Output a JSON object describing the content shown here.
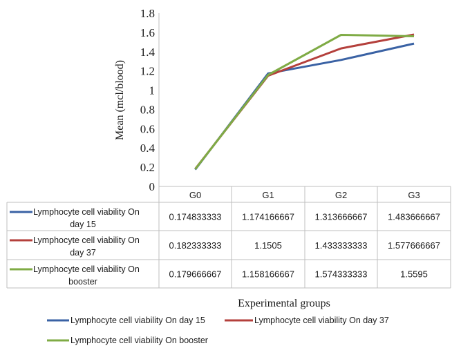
{
  "chart_data": {
    "type": "line",
    "ylabel": "Mean (mcl/blood)",
    "xlabel": "Experimental groups",
    "categories": [
      "G0",
      "G1",
      "G2",
      "G3"
    ],
    "ylim": [
      0,
      1.8
    ],
    "yticks": [
      "0",
      "0.2",
      "0.4",
      "0.6",
      "0.8",
      "1",
      "1.2",
      "1.4",
      "1.6",
      "1.8"
    ],
    "grid": false,
    "legend_position": "bottom",
    "series": [
      {
        "name": "Lymphocyte cell viability  On day 15",
        "table_label": [
          "Lymphocyte cell viability  On",
          "day 15"
        ],
        "color": "#3a62a4",
        "values": [
          0.174833333,
          1.174166667,
          1.313666667,
          1.483666667
        ],
        "value_labels": [
          "0.174833333",
          "1.174166667",
          "1.313666667",
          "1.483666667"
        ]
      },
      {
        "name": "Lymphocyte cell viability On day 37",
        "table_label": [
          "Lymphocyte cell viability On",
          "day 37"
        ],
        "color": "#b4403c",
        "values": [
          0.182333333,
          1.1505,
          1.433333333,
          1.577666667
        ],
        "value_labels": [
          "0.182333333",
          "1.1505",
          "1.433333333",
          "1.577666667"
        ]
      },
      {
        "name": "Lymphocyte cell viability On booster",
        "table_label": [
          "Lymphocyte cell viability On",
          "booster"
        ],
        "color": "#7fab45",
        "values": [
          0.179666667,
          1.158166667,
          1.574333333,
          1.5595
        ],
        "value_labels": [
          "0.179666667",
          "1.158166667",
          "1.574333333",
          "1.5595"
        ]
      }
    ]
  }
}
